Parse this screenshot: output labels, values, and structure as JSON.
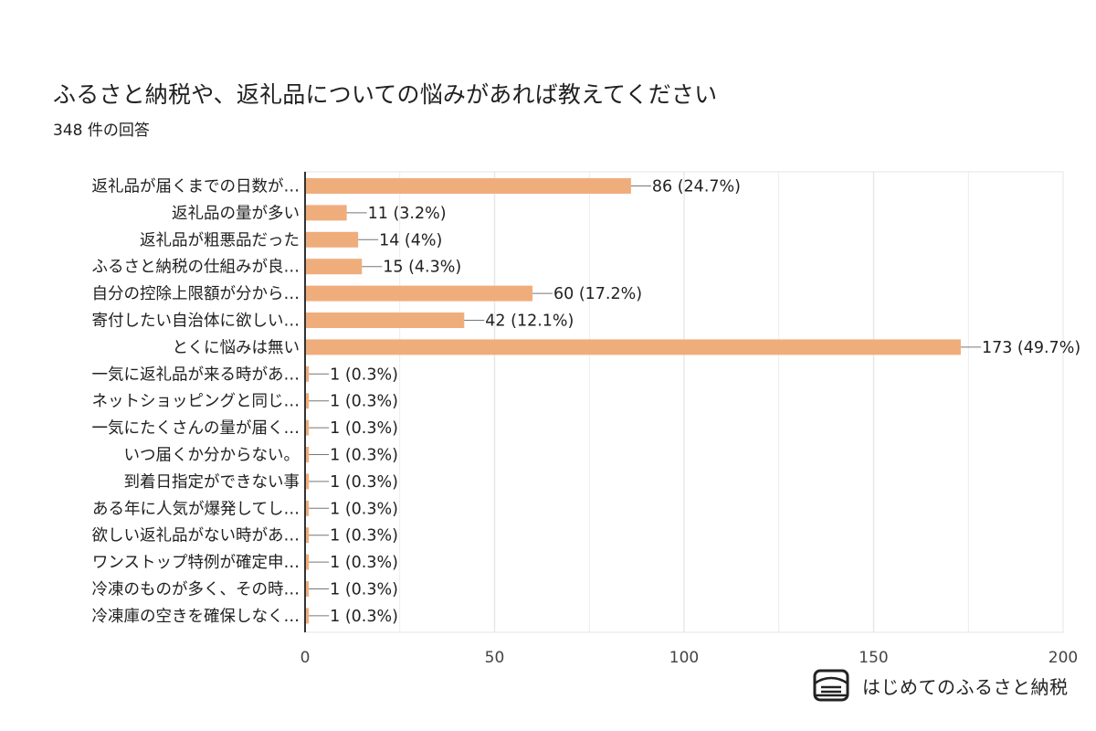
{
  "colors": {
    "bar": "#f0ad7c",
    "axis": "#333333",
    "grid": "#e6e6e6",
    "text": "#212121"
  },
  "brand": {
    "name": "はじめてのふるさと納税",
    "logo_icon": "box-logo-icon"
  },
  "chart_data": {
    "type": "bar",
    "orientation": "horizontal",
    "title": "ふるさと納税や、返礼品についての悩みがあれば教えてください",
    "subtitle": "348 件の回答",
    "xlim": [
      0,
      200
    ],
    "xticks": [
      0,
      50,
      100,
      150,
      200
    ],
    "grid": true,
    "categories": [
      "返礼品が届くまでの日数が…",
      "返礼品の量が多い",
      "返礼品が粗悪品だった",
      "ふるさと納税の仕組みが良…",
      "自分の控除上限額が分から…",
      "寄付したい自治体に欲しい…",
      "とくに悩みは無い",
      "一気に返礼品が来る時があ…",
      "ネットショッピングと同じ…",
      "一気にたくさんの量が届く…",
      "いつ届くか分からない。",
      "到着日指定ができない事",
      "ある年に人気が爆発してし…",
      "欲しい返礼品がない時があ…",
      "ワンストップ特例が確定申…",
      "冷凍のものが多く、その時…",
      "冷凍庫の空きを確保しなく…"
    ],
    "values": [
      86,
      11,
      14,
      15,
      60,
      42,
      173,
      1,
      1,
      1,
      1,
      1,
      1,
      1,
      1,
      1,
      1
    ],
    "data_labels": [
      "86 (24.7%)",
      "11 (3.2%)",
      "14 (4%)",
      "15 (4.3%)",
      "60 (17.2%)",
      "42 (12.1%)",
      "173 (49.7%)",
      "1 (0.3%)",
      "1 (0.3%)",
      "1 (0.3%)",
      "1 (0.3%)",
      "1 (0.3%)",
      "1 (0.3%)",
      "1 (0.3%)",
      "1 (0.3%)",
      "1 (0.3%)",
      "1 (0.3%)"
    ]
  }
}
